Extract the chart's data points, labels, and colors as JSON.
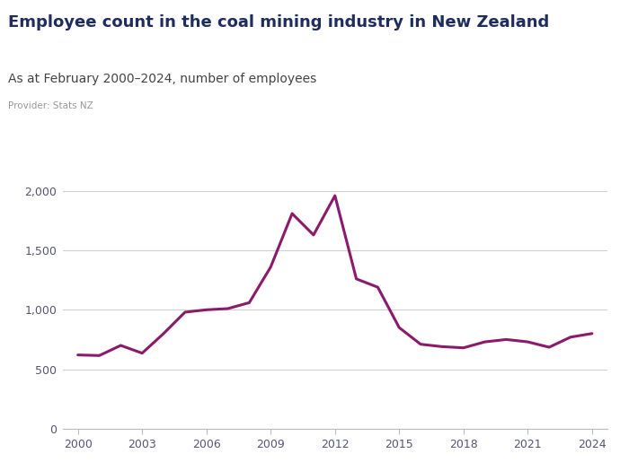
{
  "title": "Employee count in the coal mining industry in New Zealand",
  "subtitle": "As at February 2000–2024, number of employees",
  "provider": "Provider: Stats NZ",
  "line_color": "#8B1A6B",
  "background_color": "#ffffff",
  "years": [
    2000,
    2001,
    2002,
    2003,
    2004,
    2005,
    2006,
    2007,
    2008,
    2009,
    2010,
    2011,
    2012,
    2013,
    2014,
    2015,
    2016,
    2017,
    2018,
    2019,
    2020,
    2021,
    2022,
    2023,
    2024
  ],
  "values": [
    620,
    615,
    700,
    635,
    800,
    980,
    1000,
    1010,
    1060,
    1360,
    1810,
    1630,
    1960,
    1260,
    1190,
    850,
    710,
    690,
    680,
    730,
    750,
    730,
    685,
    770,
    800
  ],
  "ylim": [
    0,
    2200
  ],
  "yticks": [
    0,
    500,
    1000,
    1500,
    2000
  ],
  "xticks": [
    2000,
    2003,
    2006,
    2009,
    2012,
    2015,
    2018,
    2021,
    2024
  ],
  "logo_color": "#5B6EC7",
  "title_color": "#1e2d5e",
  "subtitle_color": "#444444",
  "provider_color": "#999999",
  "grid_color": "#d0d0d0",
  "axis_color": "#bbbbbb",
  "line_width": 2.2,
  "title_fontsize": 13,
  "subtitle_fontsize": 10,
  "provider_fontsize": 7.5,
  "tick_fontsize": 9,
  "logo_fontsize": 11
}
